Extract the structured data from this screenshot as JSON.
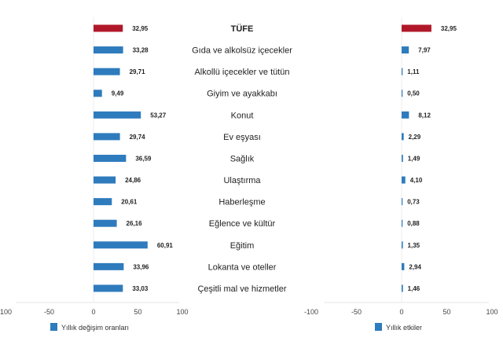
{
  "chart_data": [
    {
      "type": "bar",
      "orientation": "horizontal",
      "categories": [
        "TÜFE",
        "Gıda ve alkolsüz içecekler",
        "Alkollü içecekler ve tütün",
        "Giyim ve ayakkabı",
        "Konut",
        "Ev eşyası",
        "Sağlık",
        "Ulaştırma",
        "Haberleşme",
        "Eğlence ve kültür",
        "Eğitim",
        "Lokanta ve oteller",
        "Çeşitli mal ve hizmetler"
      ],
      "series": [
        {
          "name": "Yıllık değişim oranları",
          "values": [
            32.95,
            33.28,
            29.71,
            9.49,
            53.27,
            29.74,
            36.59,
            24.86,
            20.61,
            26.16,
            60.91,
            33.96,
            33.03
          ]
        }
      ],
      "value_labels": [
        "32,95",
        "33,28",
        "29,71",
        "9,49",
        "53,27",
        "29,74",
        "36,59",
        "24,86",
        "20,61",
        "26,16",
        "60,91",
        "33,96",
        "33,03"
      ],
      "xlim": [
        -100,
        100
      ],
      "xticks": [
        "-100",
        "-50",
        "0",
        "50",
        "100"
      ],
      "legend": "bottom",
      "highlight_color": "#b0182a",
      "bar_color": "#2e7bbd"
    },
    {
      "type": "bar",
      "orientation": "horizontal",
      "categories": [
        "TÜFE",
        "Gıda ve alkolsüz içecekler",
        "Alkollü içecekler ve tütün",
        "Giyim ve ayakkabı",
        "Konut",
        "Ev eşyası",
        "Sağlık",
        "Ulaştırma",
        "Haberleşme",
        "Eğlence ve kültür",
        "Eğitim",
        "Lokanta ve oteller",
        "Çeşitli mal ve hizmetler"
      ],
      "series": [
        {
          "name": "Yıllık etkiler",
          "values": [
            32.95,
            7.97,
            1.11,
            0.5,
            8.12,
            2.29,
            1.49,
            4.1,
            0.73,
            0.88,
            1.35,
            2.94,
            1.46
          ]
        }
      ],
      "value_labels": [
        "32,95",
        "7,97",
        "1,11",
        "0,50",
        "8,12",
        "2,29",
        "1,49",
        "4,10",
        "0,73",
        "0,88",
        "1,35",
        "2,94",
        "1,46"
      ],
      "xlim": [
        -100,
        100
      ],
      "xticks": [
        "-100",
        "-50",
        "0",
        "50",
        "100"
      ],
      "legend": "bottom",
      "highlight_color": "#b0182a",
      "bar_color": "#2e7bbd"
    }
  ]
}
